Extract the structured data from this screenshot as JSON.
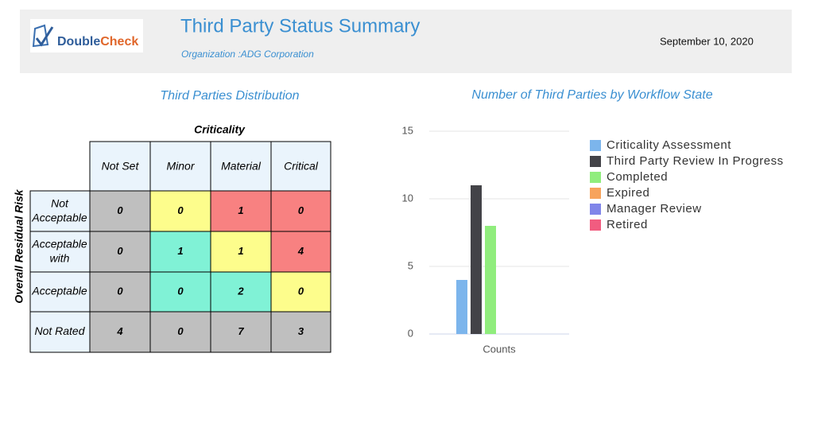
{
  "header": {
    "logo": [
      "Double",
      "Check"
    ],
    "title": "Third Party Status Summary",
    "organization": "Organization :ADG Corporation",
    "date": "September 10, 2020"
  },
  "matrix": {
    "title": "Third Parties Distribution",
    "column_header": "Criticality",
    "row_header": "Overall Residual Risk",
    "columns": [
      "Not Set",
      "Minor",
      "Material",
      "Critical"
    ],
    "rows": [
      {
        "label": "Not Acceptable",
        "cells": [
          0,
          0,
          1,
          0
        ],
        "colors": [
          "#bfbfbf",
          "#fdfd8c",
          "#f88181",
          "#f88181"
        ]
      },
      {
        "label": "Acceptable with",
        "cells": [
          0,
          1,
          1,
          4
        ],
        "colors": [
          "#bfbfbf",
          "#80f2d6",
          "#fdfd8c",
          "#f88181"
        ]
      },
      {
        "label": "Acceptable",
        "cells": [
          0,
          0,
          2,
          0
        ],
        "colors": [
          "#bfbfbf",
          "#80f2d6",
          "#80f2d6",
          "#fdfd8c"
        ]
      },
      {
        "label": "Not Rated",
        "cells": [
          4,
          0,
          7,
          3
        ],
        "colors": [
          "#bfbfbf",
          "#bfbfbf",
          "#bfbfbf",
          "#bfbfbf"
        ]
      }
    ]
  },
  "chart_data": {
    "type": "bar",
    "title": "Number of Third Parties by Workflow State",
    "categories": [
      "Counts"
    ],
    "series": [
      {
        "name": "Criticality Assessment",
        "color": "#7cb5ec",
        "values": [
          4
        ]
      },
      {
        "name": "Third Party Review In Progress",
        "color": "#434348",
        "values": [
          11
        ]
      },
      {
        "name": "Completed",
        "color": "#90ed7d",
        "values": [
          8
        ]
      },
      {
        "name": "Expired",
        "color": "#f7a35c",
        "values": [
          0
        ]
      },
      {
        "name": "Manager Review",
        "color": "#8085e9",
        "values": [
          0
        ]
      },
      {
        "name": "Retired",
        "color": "#f15c80",
        "values": [
          0
        ]
      }
    ],
    "ylim": [
      0,
      15
    ],
    "yticks": [
      0,
      5,
      10,
      15
    ],
    "grid": true
  }
}
